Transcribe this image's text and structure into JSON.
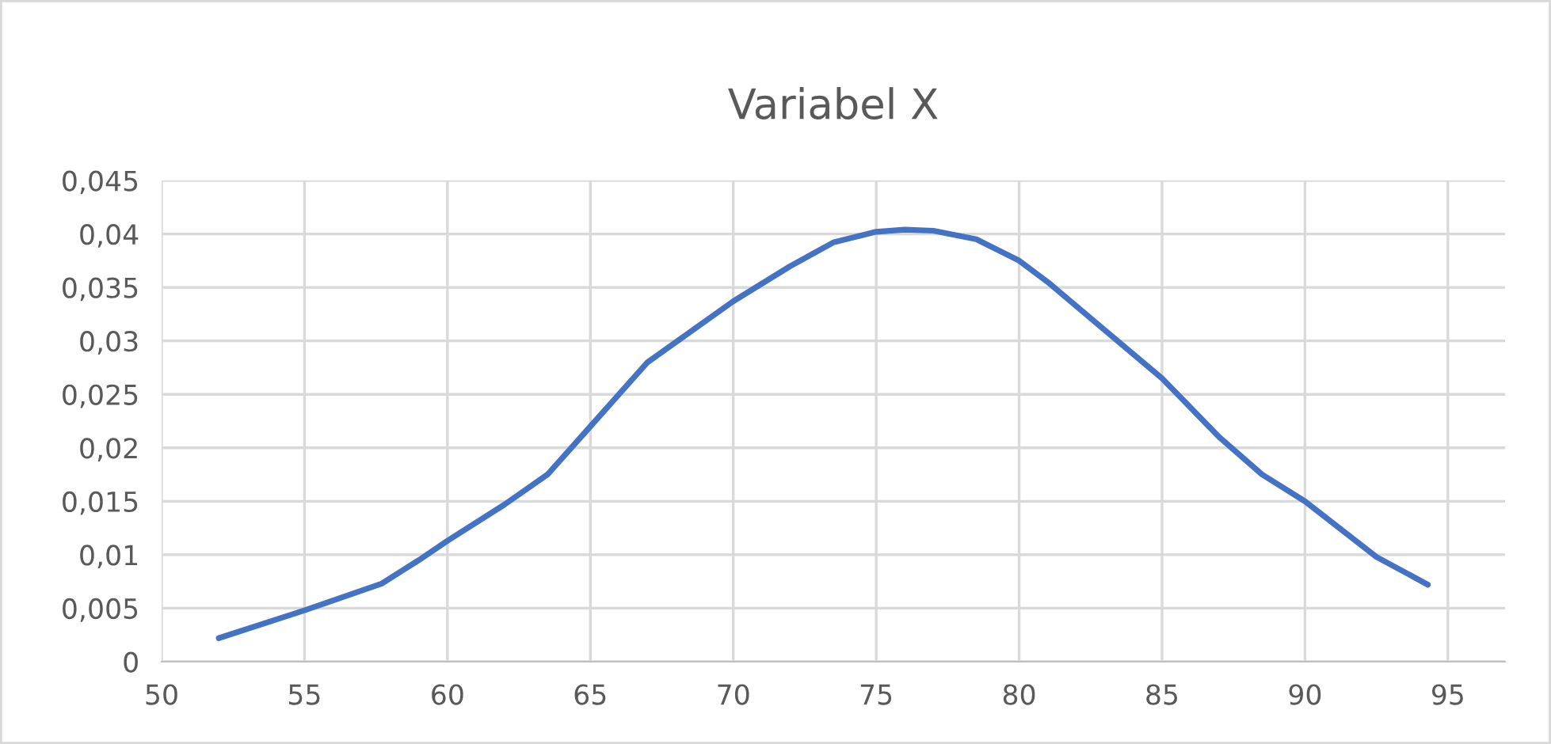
{
  "chart_data": {
    "type": "line",
    "title": "Variabel X",
    "x": [
      52,
      55,
      57.7,
      59,
      60,
      62,
      63.5,
      65,
      67,
      70,
      72,
      73.5,
      75,
      76,
      77,
      78.5,
      80,
      81,
      83,
      85,
      87,
      88.5,
      90,
      92.5,
      94.3
    ],
    "series": [
      {
        "color": "#4472c4",
        "values": [
          0.0022,
          0.0048,
          0.0073,
          0.0095,
          0.0113,
          0.0147,
          0.0175,
          0.022,
          0.028,
          0.0337,
          0.037,
          0.0392,
          0.0402,
          0.0404,
          0.0403,
          0.0395,
          0.0375,
          0.0355,
          0.031,
          0.0265,
          0.021,
          0.0175,
          0.015,
          0.0098,
          0.0072
        ]
      }
    ],
    "xlim": [
      50,
      97
    ],
    "xticks": [
      50,
      55,
      60,
      65,
      70,
      75,
      80,
      85,
      90,
      95
    ],
    "ylim": [
      0,
      0.045
    ],
    "yticks": [
      0,
      {
        "value": 0.005,
        "label": "0,005"
      },
      {
        "value": 0.01,
        "label": "0,01"
      },
      {
        "value": 0.015,
        "label": "0,015"
      },
      {
        "value": 0.02,
        "label": "0,02"
      },
      {
        "value": 0.025,
        "label": "0,025"
      },
      {
        "value": 0.03,
        "label": "0,03"
      },
      {
        "value": 0.035,
        "label": "0,035"
      },
      {
        "value": 0.04,
        "label": "0,04"
      },
      {
        "value": 0.045,
        "label": "0,045"
      }
    ],
    "grid": true,
    "legend": false,
    "marker": "none",
    "line_style": "solid"
  }
}
